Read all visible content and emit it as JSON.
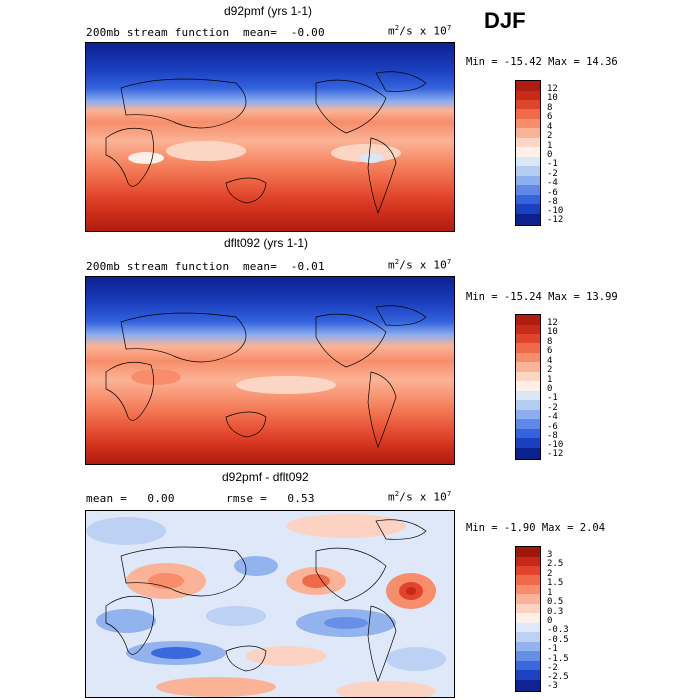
{
  "season": "DJF",
  "panels": [
    {
      "title": "d92pmf (yrs 1-1)",
      "subtitle_left": "200mb stream function",
      "mean_label": "mean=",
      "mean_value": "-0.00",
      "units_base": "m",
      "units_exp": "2",
      "units_mid": "/s x 10",
      "units_exp2": "7",
      "min_max": "Min = -15.42 Max =  14.36",
      "levels": [
        "12",
        "10",
        "8",
        "6",
        "4",
        "2",
        "1",
        "0",
        "-1",
        "-2",
        "-4",
        "-6",
        "-8",
        "-10",
        "-12"
      ],
      "colors": [
        "#b01c10",
        "#c92a18",
        "#e0442a",
        "#ef6a48",
        "#f78d6a",
        "#fbb396",
        "#fcd6c4",
        "#fdf0e6",
        "#dbe6f7",
        "#b6cdf2",
        "#8daeef",
        "#5f89e8",
        "#3463dd",
        "#1a3fbf",
        "#0d2090"
      ]
    },
    {
      "title": "dflt092 (yrs 1-1)",
      "subtitle_left": "200mb stream function",
      "mean_label": "mean=",
      "mean_value": "-0.01",
      "units_base": "m",
      "units_exp": "2",
      "units_mid": "/s x 10",
      "units_exp2": "7",
      "min_max": "Min = -15.24 Max =  13.99",
      "levels": [
        "12",
        "10",
        "8",
        "6",
        "4",
        "2",
        "1",
        "0",
        "-1",
        "-2",
        "-4",
        "-6",
        "-8",
        "-10",
        "-12"
      ],
      "colors": [
        "#b01c10",
        "#c92a18",
        "#e0442a",
        "#ef6a48",
        "#f78d6a",
        "#fbb396",
        "#fcd6c4",
        "#fdf0e6",
        "#dbe6f7",
        "#b6cdf2",
        "#8daeef",
        "#5f89e8",
        "#3463dd",
        "#1a3fbf",
        "#0d2090"
      ]
    },
    {
      "title": "d92pmf - dflt092",
      "mean_label": "mean =",
      "mean_value": "0.00",
      "rmse_label": "rmse =",
      "rmse_value": "0.53",
      "units_base": "m",
      "units_exp": "2",
      "units_mid": "/s x 10",
      "units_exp2": "7",
      "min_max": "Min =  -1.90 Max =   2.04",
      "levels": [
        "3",
        "2.5",
        "2",
        "1.5",
        "1",
        "0.5",
        "0.3",
        "0",
        "-0.3",
        "-0.5",
        "-1",
        "-1.5",
        "-2",
        "-2.5",
        "-3"
      ],
      "colors": [
        "#a01808",
        "#c8281a",
        "#e0452b",
        "#ee6a48",
        "#f78d6a",
        "#fab397",
        "#fcd3c2",
        "#fdf0e8",
        "#dfe8f8",
        "#bcd1f3",
        "#93b3ef",
        "#6690e8",
        "#3a68de",
        "#1e43c2",
        "#0e2494"
      ]
    }
  ]
}
